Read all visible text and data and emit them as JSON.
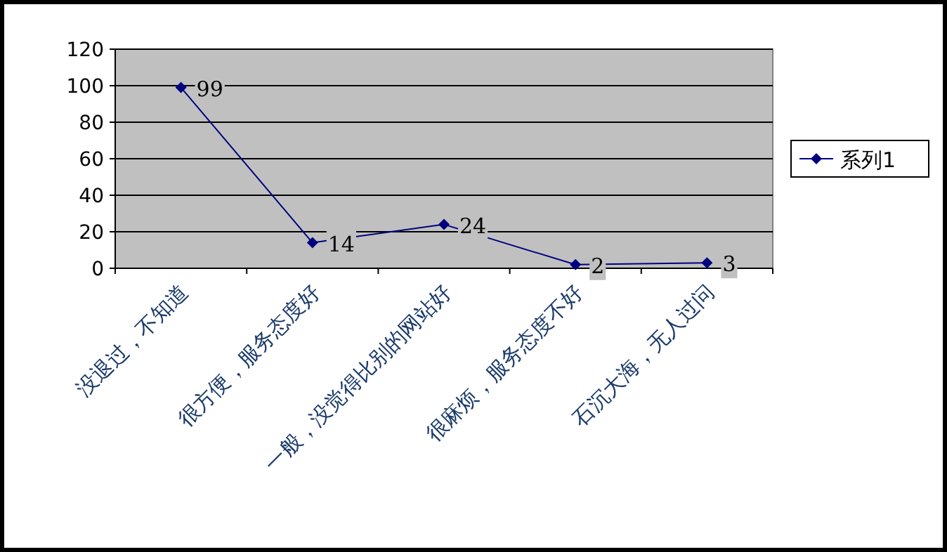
{
  "chart_data": {
    "type": "line",
    "categories": [
      "没退过，不知道",
      "很方便，服务态度好",
      "一般，没觉得比别的网站好",
      "很麻烦，服务态度不好",
      "石沉大海，无人过问"
    ],
    "series": [
      {
        "name": "系列1",
        "color": "#000080",
        "values": [
          99,
          14,
          24,
          2,
          3
        ]
      }
    ],
    "ylim": [
      0,
      120
    ],
    "yticks": [
      0,
      20,
      40,
      60,
      80,
      100,
      120
    ],
    "grid": "y",
    "legend": "right",
    "marker": "diamond",
    "data_labels": true
  }
}
